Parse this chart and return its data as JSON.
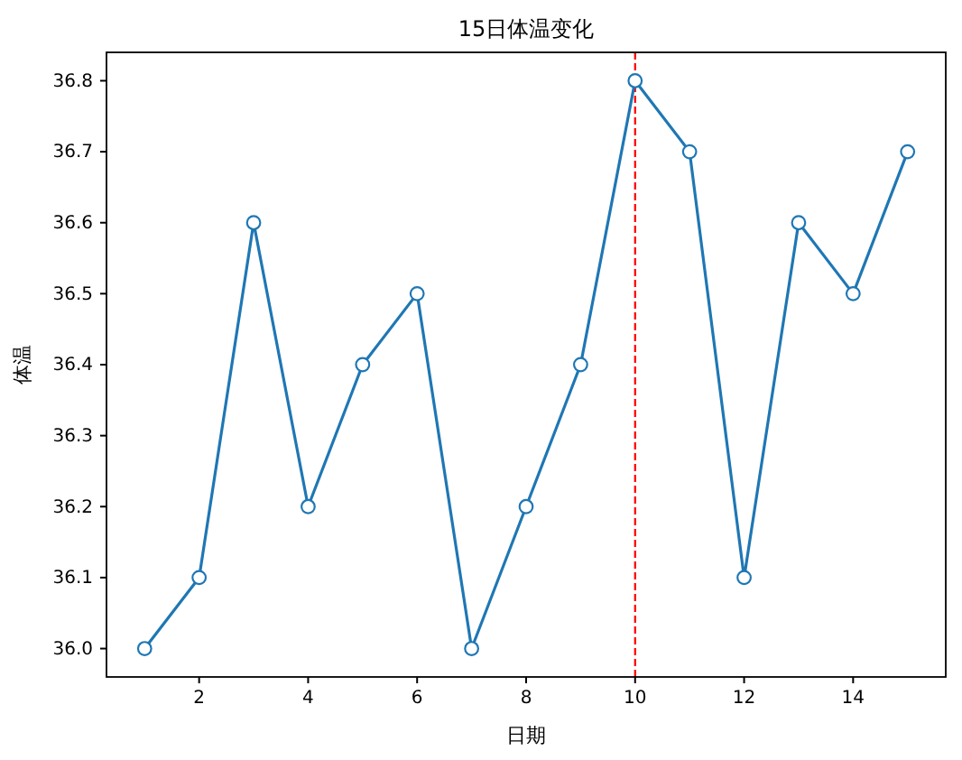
{
  "chart_data": {
    "type": "line",
    "title": "15日体温变化",
    "xlabel": "日期",
    "ylabel": "体温",
    "x": [
      1,
      2,
      3,
      4,
      5,
      6,
      7,
      8,
      9,
      10,
      11,
      12,
      13,
      14,
      15
    ],
    "series": [
      {
        "color": "#1f77b4",
        "values": [
          36.0,
          36.1,
          36.6,
          36.2,
          36.4,
          36.5,
          36.0,
          36.2,
          36.4,
          36.8,
          36.7,
          36.1,
          36.6,
          36.5,
          36.7
        ]
      }
    ],
    "xlim": [
      0.3,
      15.7
    ],
    "xticks": [
      2,
      4,
      6,
      8,
      10,
      12,
      14
    ],
    "ylim": [
      35.96,
      36.84
    ],
    "yticks": [
      {
        "value": 36.0,
        "label": "36.0"
      },
      36.1,
      36.2,
      36.3,
      36.4,
      36.5,
      36.6,
      36.7,
      36.8
    ],
    "ref_lines": [
      {
        "axis": "x",
        "value": 10,
        "color": "#ff0000",
        "line_style": "dashed"
      }
    ],
    "marker": "circle",
    "line_style": "solid",
    "grid": false
  }
}
